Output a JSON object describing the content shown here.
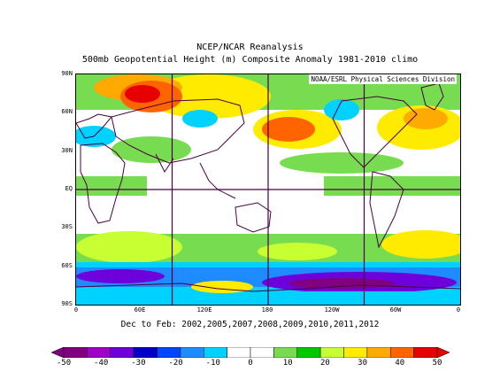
{
  "title_line1": "NCEP/NCAR Reanalysis",
  "title_line2": "500mb Geopotential Height (m) Composite Anomaly 1981-2010 climo",
  "credit": "NOAA/ESRL Physical Sciences Division",
  "period": "Dec to Feb: 2002,2005,2007,2008,2009,2010,2011,2012",
  "lat_labels": [
    "90N",
    "60N",
    "30N",
    "EQ",
    "30S",
    "60S",
    "90S"
  ],
  "lon_labels": [
    "0",
    "60E",
    "120E",
    "180",
    "120W",
    "60W",
    "0"
  ],
  "colorbar": {
    "ticks": [
      "-50",
      "-40",
      "-30",
      "-20",
      "-10",
      "0",
      "10",
      "20",
      "30",
      "40",
      "50"
    ],
    "colors": [
      "#800080",
      "#a000c8",
      "#6e00dc",
      "#0000c8",
      "#0046ff",
      "#1e8cff",
      "#00d2ff",
      "#ffffff",
      "#ffffff",
      "#78dc50",
      "#00c800",
      "#c8ff32",
      "#ffeb00",
      "#ffaa00",
      "#ff6400",
      "#e60000"
    ]
  }
}
